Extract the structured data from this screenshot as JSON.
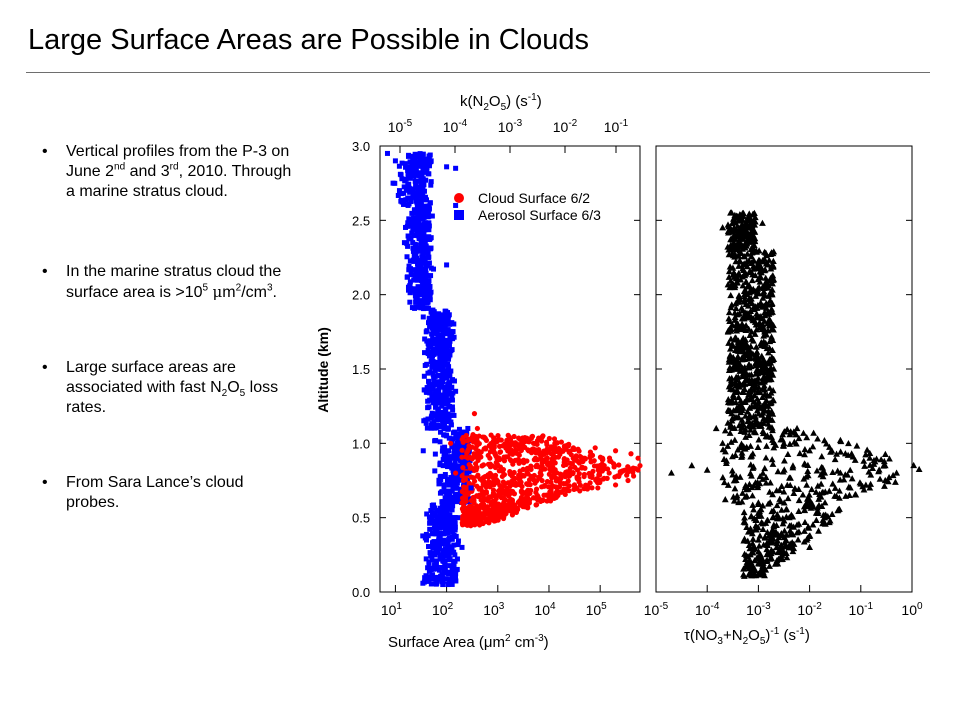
{
  "slide": {
    "title": "Large Surface Areas are Possible in Clouds",
    "bullet_char": "•"
  },
  "bullets": {
    "b1": {
      "p1": "Vertical profiles from the P-3 on June 2",
      "s1": "nd",
      "p2": " and 3",
      "s2": "rd",
      "p3": ", 2010. Through a marine stratus cloud."
    },
    "b2": {
      "p1": "In the marine stratus cloud the surface area is >10",
      "s1": "5",
      "p2": " ",
      "mu": "μ",
      "p3": "m",
      "s2": "2",
      "p4": "/cm",
      "s3": "3",
      "p5": "."
    },
    "b3": {
      "p1": "Large surface areas are associated with fast N",
      "s1": "2",
      "p2": "O",
      "s2": "5",
      "p3": " loss rates."
    },
    "b4": {
      "p1": "From Sara Lance’s cloud probes."
    }
  },
  "chart_data": [
    {
      "type": "scatter",
      "xscale": "log",
      "xlim": [
        5,
        600000
      ],
      "ylim": [
        0,
        3.0
      ],
      "ylabel": "Altitude (km)",
      "xlabel_bottom": {
        "main": "Surface Area (μm",
        "sup1": "2",
        "mid": " cm",
        "sup2": "-3",
        "end": ")"
      },
      "xlabel_top": {
        "main": "k(N",
        "sub1": "2",
        "mid": "O",
        "sub2": "5",
        "mid2": ") (s",
        "sup": "-1",
        "end": ")"
      },
      "yticks": [
        "0.0",
        "0.5",
        "1.0",
        "1.5",
        "2.0",
        "2.5",
        "3.0"
      ],
      "xticks_bottom": [
        {
          "base": "10",
          "exp": "1"
        },
        {
          "base": "10",
          "exp": "2"
        },
        {
          "base": "10",
          "exp": "3"
        },
        {
          "base": "10",
          "exp": "4"
        },
        {
          "base": "10",
          "exp": "5"
        }
      ],
      "xticks_top": [
        {
          "base": "10",
          "exp": "-5"
        },
        {
          "base": "10",
          "exp": "-4"
        },
        {
          "base": "10",
          "exp": "-3"
        },
        {
          "base": "10",
          "exp": "-2"
        },
        {
          "base": "10",
          "exp": "-1"
        }
      ],
      "legend_position": "top-right",
      "series": [
        {
          "name": "Cloud Surface 6/2",
          "marker": "circle",
          "color": "#ff0000",
          "points": [
            [
              300,
              0.45
            ],
            [
              500,
              0.52
            ],
            [
              900,
              0.55
            ],
            [
              1600,
              0.57
            ],
            [
              3000,
              0.6
            ],
            [
              6000,
              0.62
            ],
            [
              15000,
              0.65
            ],
            [
              40000,
              0.68
            ],
            [
              90000,
              0.7
            ],
            [
              200000,
              0.72
            ],
            [
              350000,
              0.75
            ],
            [
              450000,
              0.78
            ],
            [
              550000,
              0.82
            ],
            [
              600000,
              0.85
            ],
            [
              550000,
              0.9
            ],
            [
              400000,
              0.93
            ],
            [
              200000,
              0.95
            ],
            [
              80000,
              0.97
            ],
            [
              20000,
              0.98
            ],
            [
              5000,
              1.0
            ],
            [
              1500,
              1.02
            ],
            [
              600,
              1.02
            ],
            [
              400,
              1.1
            ],
            [
              350,
              1.2
            ],
            [
              250,
              0.7
            ],
            [
              150,
              0.8
            ],
            [
              120,
              1.0
            ],
            [
              2000,
              0.8
            ],
            [
              10000,
              0.85
            ],
            [
              50000,
              0.9
            ],
            [
              150000,
              0.8
            ],
            [
              800,
              0.65
            ],
            [
              200,
              0.6
            ],
            [
              300,
              0.5
            ],
            [
              100000,
              0.75
            ],
            [
              30000,
              0.97
            ],
            [
              700,
              0.9
            ],
            [
              4000,
              0.95
            ]
          ]
        },
        {
          "name": "Aerosol Surface 6/3",
          "marker": "square",
          "color": "#0000ff",
          "points": [
            [
              7,
              2.95
            ],
            [
              10,
              2.9
            ],
            [
              18,
              2.93
            ],
            [
              25,
              2.88
            ],
            [
              50,
              2.9
            ],
            [
              100,
              2.86
            ],
            [
              150,
              2.85
            ],
            [
              9,
              2.75
            ],
            [
              12,
              2.7
            ],
            [
              20,
              2.65
            ],
            [
              30,
              2.55
            ],
            [
              22,
              2.45
            ],
            [
              15,
              2.35
            ],
            [
              25,
              2.3
            ],
            [
              40,
              2.2
            ],
            [
              30,
              2.1
            ],
            [
              18,
              2.05
            ],
            [
              25,
              1.95
            ],
            [
              35,
              1.85
            ],
            [
              40,
              1.75
            ],
            [
              45,
              1.65
            ],
            [
              50,
              1.55
            ],
            [
              60,
              1.45
            ],
            [
              70,
              1.35
            ],
            [
              80,
              1.25
            ],
            [
              90,
              1.15
            ],
            [
              100,
              1.05
            ],
            [
              110,
              0.95
            ],
            [
              120,
              0.85
            ],
            [
              110,
              0.75
            ],
            [
              100,
              0.65
            ],
            [
              90,
              0.55
            ],
            [
              80,
              0.45
            ],
            [
              70,
              0.35
            ],
            [
              60,
              0.25
            ],
            [
              50,
              0.15
            ],
            [
              40,
              0.1
            ],
            [
              45,
              0.2
            ],
            [
              150,
              0.9
            ],
            [
              250,
              0.8
            ],
            [
              300,
              0.7
            ],
            [
              35,
              0.95
            ],
            [
              200,
              0.3
            ],
            [
              260,
              1.1
            ],
            [
              150,
              1.35
            ],
            [
              100,
              2.2
            ],
            [
              150,
              2.6
            ],
            [
              150,
              0.5
            ]
          ]
        }
      ]
    },
    {
      "type": "scatter",
      "xscale": "log",
      "xlim": [
        1e-05,
        1
      ],
      "ylim": [
        0,
        3.0
      ],
      "xlabel": {
        "main": "τ(NO",
        "sub1": "3",
        "mid": "+N",
        "sub2": "2",
        "mid2": "O",
        "sub3": "5",
        "mid3": ")",
        "sup1": "-1",
        "mid4": " (s",
        "sup2": "-1",
        "end": ")"
      },
      "xticks": [
        {
          "base": "10",
          "exp": "-5"
        },
        {
          "base": "10",
          "exp": "-4"
        },
        {
          "base": "10",
          "exp": "-3"
        },
        {
          "base": "10",
          "exp": "-2"
        },
        {
          "base": "10",
          "exp": "-1"
        },
        {
          "base": "10",
          "exp": "0"
        }
      ],
      "series": [
        {
          "marker": "triangle",
          "color": "#000000",
          "points": [
            [
              0.0003,
              2.55
            ],
            [
              0.0006,
              2.5
            ],
            [
              0.0002,
              2.45
            ],
            [
              0.0012,
              2.48
            ],
            [
              0.0003,
              2.3
            ],
            [
              0.0005,
              2.2
            ],
            [
              0.0004,
              2.1
            ],
            [
              0.0006,
              2.0
            ],
            [
              0.0008,
              1.9
            ],
            [
              0.0004,
              1.8
            ],
            [
              0.0005,
              1.7
            ],
            [
              0.0009,
              1.6
            ],
            [
              0.0004,
              1.5
            ],
            [
              0.0003,
              1.4
            ],
            [
              0.0006,
              1.3
            ],
            [
              0.0003,
              1.2
            ],
            [
              0.00015,
              1.1
            ],
            [
              0.0002,
              1.0
            ],
            [
              0.0005,
              0.98
            ],
            [
              0.002,
              0.97
            ],
            [
              0.01,
              0.95
            ],
            [
              0.05,
              0.93
            ],
            [
              0.15,
              0.9
            ],
            [
              0.3,
              0.85
            ],
            [
              0.5,
              0.8
            ],
            [
              0.3,
              0.75
            ],
            [
              0.15,
              0.7
            ],
            [
              0.06,
              0.65
            ],
            [
              0.02,
              0.6
            ],
            [
              0.008,
              0.55
            ],
            [
              0.004,
              0.5
            ],
            [
              0.002,
              0.45
            ],
            [
              0.0015,
              0.4
            ],
            [
              0.001,
              0.35
            ],
            [
              0.0008,
              0.3
            ],
            [
              0.0007,
              0.25
            ],
            [
              0.0006,
              0.2
            ],
            [
              0.0008,
              0.15
            ],
            [
              0.001,
              0.12
            ],
            [
              2e-05,
              0.8
            ],
            [
              5e-05,
              0.85
            ],
            [
              0.0001,
              0.82
            ],
            [
              0.0015,
              1.05
            ],
            [
              0.002,
              1.5
            ],
            [
              0.002,
              2.1
            ],
            [
              0.001,
              0.6
            ],
            [
              0.04,
              0.8
            ],
            [
              0.01,
              0.3
            ]
          ]
        }
      ]
    }
  ]
}
